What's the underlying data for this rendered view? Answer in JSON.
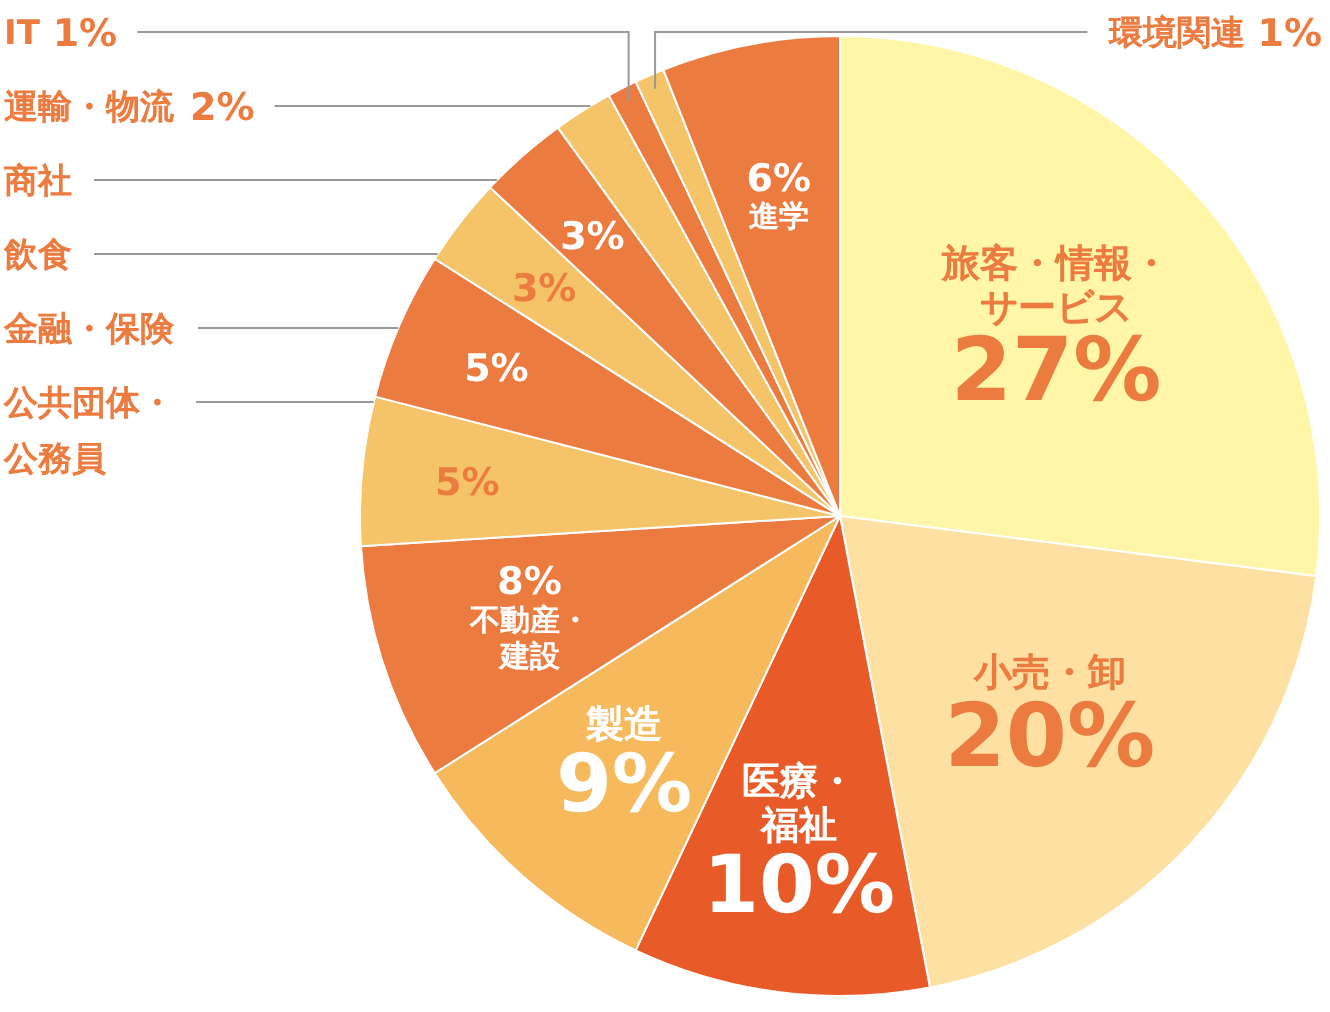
{
  "chart_data": {
    "type": "pie",
    "categories": [
      "旅客・情報・サービス",
      "小売・卸",
      "医療・福祉",
      "製造",
      "不動産・建設",
      "公共団体・公務員",
      "金融・保険",
      "飲食",
      "商社",
      "運輸・物流",
      "IT",
      "環境関連",
      "進学"
    ],
    "values": [
      27,
      20,
      10,
      9,
      8,
      5,
      5,
      3,
      3,
      2,
      1,
      1,
      6
    ],
    "value_labels": [
      "27%",
      "20%",
      "10%",
      "9%",
      "8%",
      "5%",
      "5%",
      "3%",
      "3%",
      "2%",
      "1%",
      "1%",
      "6%"
    ],
    "colors": [
      "#fff6a8",
      "#fde0a2",
      "#e85a28",
      "#f6b95c",
      "#ec7b40",
      "#f6c468",
      "#ec7b40",
      "#f6c468",
      "#ec7b40",
      "#f6c468",
      "#ec7b40",
      "#f6c468",
      "#ec7b40"
    ]
  }
}
